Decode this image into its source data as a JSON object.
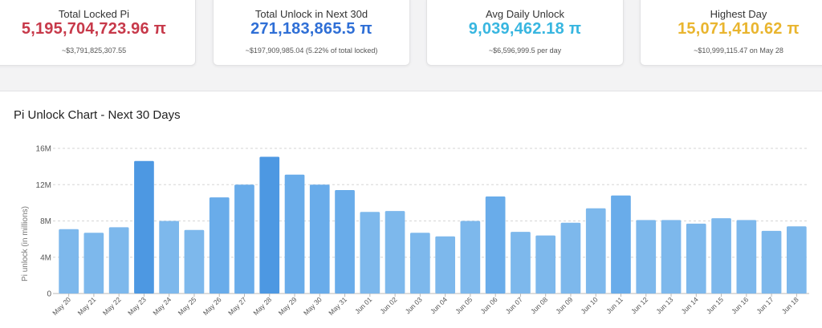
{
  "cards": [
    {
      "title": "Total Locked Pi",
      "value": "5,195,704,723.96 π",
      "sub": "~$3,791,825,307.55",
      "color": "#c7394a"
    },
    {
      "title": "Total Unlock in Next 30d",
      "value": "271,183,865.5 π",
      "sub": "~$197,909,985.04 (5.22% of total locked)",
      "color": "#2f6fd6"
    },
    {
      "title": "Avg Daily Unlock",
      "value": "9,039,462.18 π",
      "sub": "~$6,596,999.5 per day",
      "color": "#38b6e0"
    },
    {
      "title": "Highest Day",
      "value": "15,071,410.62 π",
      "sub": "~$10,999,115.47 on May 28",
      "color": "#e9b52f"
    }
  ],
  "panel": {
    "title": "Pi Unlock Chart - Next 30 Days"
  },
  "chart_data": {
    "type": "bar",
    "title": "Pi Unlock Chart - Next 30 Days",
    "ylabel": "Pi unlock (in millions)",
    "xlabel": "",
    "ylim": [
      0,
      16
    ],
    "yticks": [
      0,
      4,
      8,
      12,
      16
    ],
    "ytick_labels": [
      "0",
      "4M",
      "8M",
      "12M",
      "16M"
    ],
    "grid": true,
    "categories": [
      "May 20",
      "May 21",
      "May 22",
      "May 23",
      "May 24",
      "May 25",
      "May 26",
      "May 27",
      "May 28",
      "May 29",
      "May 30",
      "May 31",
      "Jun 01",
      "Jun 02",
      "Jun 03",
      "Jun 04",
      "Jun 05",
      "Jun 06",
      "Jun 07",
      "Jun 08",
      "Jun 09",
      "Jun 10",
      "Jun 11",
      "Jun 12",
      "Jun 13",
      "Jun 14",
      "Jun 15",
      "Jun 16",
      "Jun 17",
      "Jun 18"
    ],
    "values": [
      7.1,
      6.7,
      7.3,
      14.6,
      8.0,
      7.0,
      10.6,
      12.0,
      15.07,
      13.1,
      12.0,
      11.4,
      9.0,
      9.1,
      6.7,
      6.3,
      8.0,
      10.7,
      6.8,
      6.4,
      7.8,
      9.4,
      10.8,
      8.1,
      8.1,
      7.7,
      8.3,
      8.1,
      6.9,
      7.4
    ],
    "colors": {
      "light": "#7db8ec",
      "mid": "#69acea",
      "dark": "#4d98e2",
      "grid": "#d6d6d6"
    }
  }
}
